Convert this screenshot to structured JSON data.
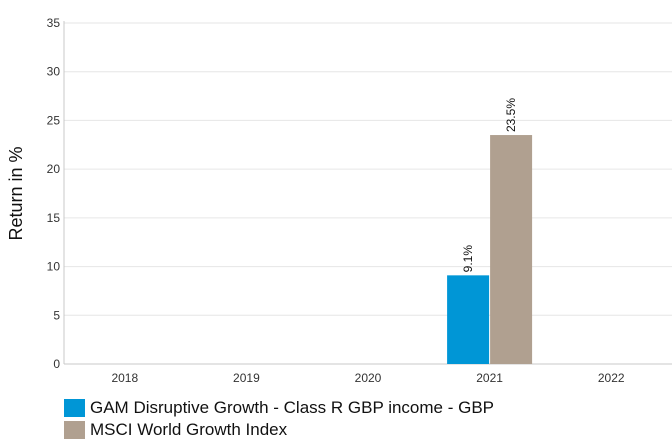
{
  "chart_data": {
    "type": "bar",
    "categories": [
      "2018",
      "2019",
      "2020",
      "2021",
      "2022"
    ],
    "series": [
      {
        "name": "GAM Disruptive Growth - Class R GBP income - GBP",
        "values": [
          null,
          null,
          null,
          9.1,
          null
        ],
        "labels": [
          null,
          null,
          null,
          "9.1%",
          null
        ],
        "color": "#0096d6"
      },
      {
        "name": "MSCI World Growth Index",
        "values": [
          null,
          null,
          null,
          23.5,
          null
        ],
        "labels": [
          null,
          null,
          null,
          "23.5%",
          null
        ],
        "color": "#b0a090"
      }
    ],
    "ylabel": "Return in %",
    "xlabel": "",
    "ylim": [
      0,
      35
    ],
    "yticks": [
      "0",
      "5",
      "10",
      "15",
      "20",
      "25",
      "30",
      "35"
    ],
    "grid": true,
    "legend_position": "bottom-left"
  }
}
